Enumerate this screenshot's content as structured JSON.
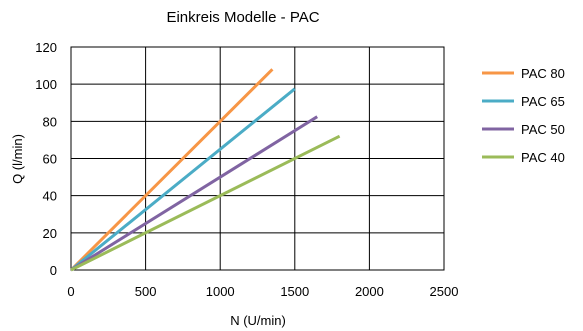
{
  "chart_data": {
    "type": "line",
    "title": "Einkreis Modelle - PAC",
    "xlabel": "N (U/min)",
    "ylabel": "Q (l/min)",
    "xlim": [
      0,
      2500
    ],
    "ylim": [
      0,
      120
    ],
    "x_ticks": [
      "0",
      "500",
      "1000",
      "1500",
      "2000",
      "2500"
    ],
    "y_ticks": [
      "0",
      "20",
      "40",
      "60",
      "80",
      "100",
      "120"
    ],
    "grid": true,
    "legend_position": "right",
    "series": [
      {
        "name": "PAC 80",
        "color": "#f79646",
        "points": [
          [
            0,
            0
          ],
          [
            1350,
            108
          ]
        ]
      },
      {
        "name": "PAC 65",
        "color": "#4bacc6",
        "points": [
          [
            0,
            0
          ],
          [
            1500,
            97.5
          ]
        ]
      },
      {
        "name": "PAC 50",
        "color": "#8064a2",
        "points": [
          [
            0,
            0
          ],
          [
            1650,
            82.5
          ]
        ]
      },
      {
        "name": "PAC 40",
        "color": "#9bbb59",
        "points": [
          [
            0,
            0
          ],
          [
            1800,
            72
          ]
        ]
      }
    ]
  }
}
